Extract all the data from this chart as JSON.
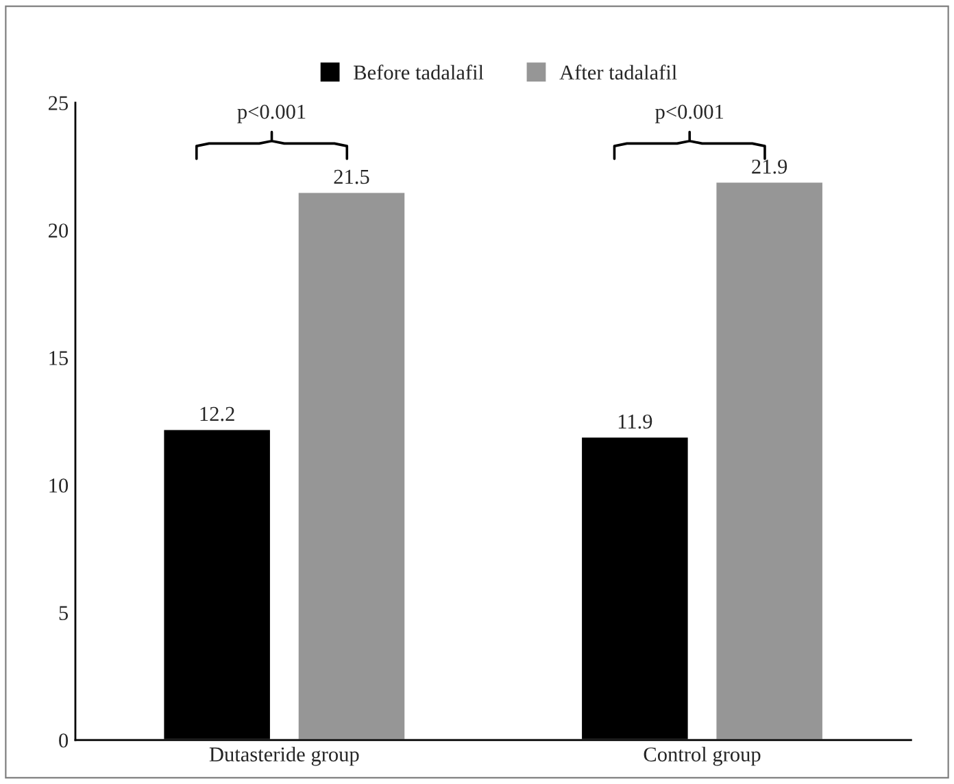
{
  "chart_data": {
    "type": "bar",
    "categories": [
      "Dutasteride group",
      "Control group"
    ],
    "series": [
      {
        "name": "Before tadalafil",
        "color": "#000000",
        "values": [
          12.2,
          11.9
        ]
      },
      {
        "name": "After tadalafil",
        "color": "#969696",
        "values": [
          21.5,
          21.9
        ]
      }
    ],
    "ylim": [
      0,
      25
    ],
    "yticks": [
      0,
      5,
      10,
      15,
      20,
      25
    ],
    "data_labels": true,
    "grid": false,
    "legend": "top",
    "annotations": [
      "p<0.001",
      "p<0.001"
    ]
  }
}
